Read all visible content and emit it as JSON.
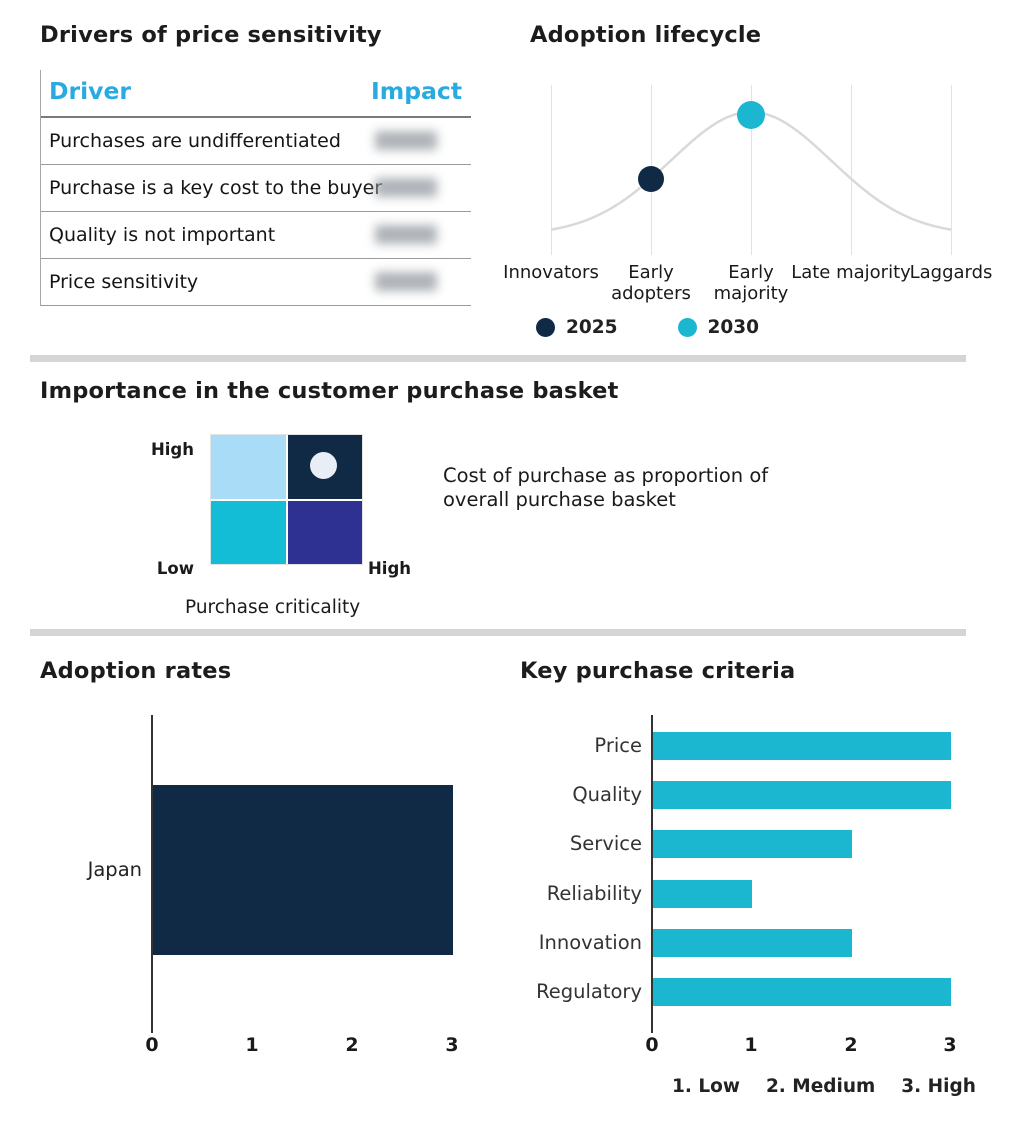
{
  "palette": {
    "navy": "#102945",
    "cyan": "#1bb7d1",
    "table_header_cyan": "#29abe2",
    "quadrant_light_blue": "#a8dcf7",
    "quadrant_cyan": "#14bdd6",
    "quadrant_indigo": "#2e3192",
    "curve_gray": "#d9d9d9",
    "divider_gray": "#d5d5d5",
    "marker_white": "#e8eef6"
  },
  "chart_data": [
    {
      "type": "table",
      "title": "Drivers of price sensitivity",
      "columns": [
        "Driver",
        "Impact"
      ],
      "rows": [
        "Purchases are undifferentiated",
        "Purchase is a key cost to the buyer",
        "Quality is not important",
        "Price sensitivity"
      ],
      "impact_note": "impact cell values are blurred/illegible in source image"
    },
    {
      "type": "line",
      "title": "Adoption lifecycle",
      "categories": [
        "Innovators",
        "Early adopters",
        "Early majority",
        "Late majority",
        "Laggards"
      ],
      "curve": "gray bell curve peaking at Early majority",
      "points": [
        {
          "name": "2025",
          "category": "Early adopters",
          "color": "#102945"
        },
        {
          "name": "2030",
          "category": "Early majority",
          "color": "#1bb7d1"
        }
      ],
      "legend_position": "bottom"
    },
    {
      "type": "heatmap",
      "title": "Importance in the customer purchase basket",
      "x_label": "Purchase criticality",
      "y_top_label": "High",
      "y_bottom_label": "Low",
      "x_right_label": "High",
      "annotation": "Cost of purchase as proportion of overall purchase basket",
      "quadrant_colors": {
        "top_left": "#a8dcf7",
        "top_right": "#102945",
        "bottom_left": "#14bdd6",
        "bottom_right": "#2e3192"
      },
      "marker_quadrant": "top-right"
    },
    {
      "type": "bar",
      "orientation": "horizontal",
      "title": "Adoption rates",
      "categories": [
        "Japan"
      ],
      "values": [
        3
      ],
      "xlim": [
        0,
        3
      ],
      "xticks": [
        0,
        1,
        2,
        3
      ],
      "bar_color": "#102945"
    },
    {
      "type": "bar",
      "orientation": "horizontal",
      "title": "Key purchase criteria",
      "categories": [
        "Price",
        "Quality",
        "Service",
        "Reliability",
        "Innovation",
        "Regulatory"
      ],
      "values": [
        3,
        3,
        2,
        1,
        2,
        3
      ],
      "xlim": [
        0,
        3
      ],
      "xticks": [
        0,
        1,
        2,
        3
      ],
      "bar_color": "#1bb7d1",
      "footnote_items": [
        "1. Low",
        "2. Medium",
        "3. High"
      ]
    }
  ]
}
